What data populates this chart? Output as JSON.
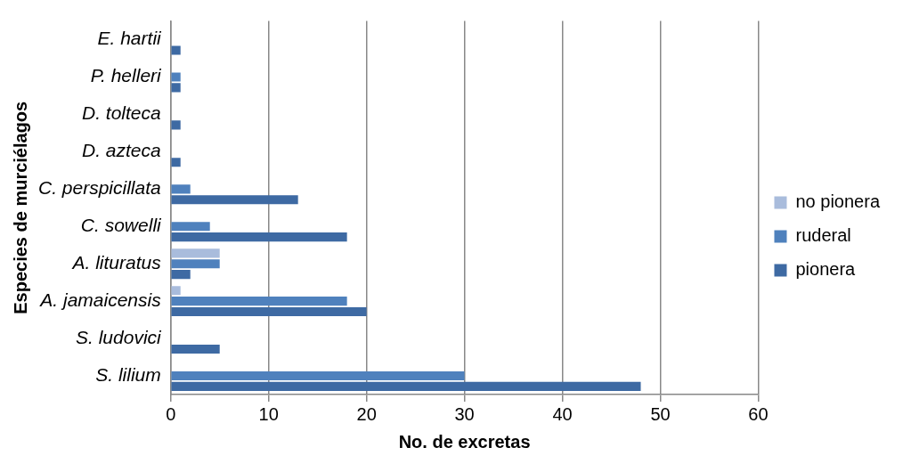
{
  "chart_data": {
    "type": "bar",
    "orientation": "horizontal",
    "xlabel": "No. de excretas",
    "ylabel": "Especies de murciélagos",
    "categories": [
      "E. hartii",
      "P. helleri",
      "D. tolteca",
      "D. azteca",
      "C. perspicillata",
      "C. sowelli",
      "A. lituratus",
      "A. jamaicensis",
      "S. ludovici",
      "S. lilium"
    ],
    "series": [
      {
        "name": "no pionera",
        "color": "#a9bcdc",
        "values": [
          null,
          null,
          null,
          null,
          null,
          null,
          5,
          1,
          null,
          null
        ]
      },
      {
        "name": "ruderal",
        "color": "#4f81bd",
        "values": [
          null,
          1,
          null,
          null,
          2,
          4,
          5,
          18,
          null,
          30
        ]
      },
      {
        "name": "pionera",
        "color": "#3e6aa3",
        "values": [
          1,
          1,
          1,
          1,
          13,
          18,
          2,
          20,
          5,
          48
        ]
      }
    ],
    "xlim": [
      0,
      60
    ],
    "xticks": [
      0,
      10,
      20,
      30,
      40,
      50,
      60
    ],
    "grid": "x",
    "legend": "right"
  }
}
